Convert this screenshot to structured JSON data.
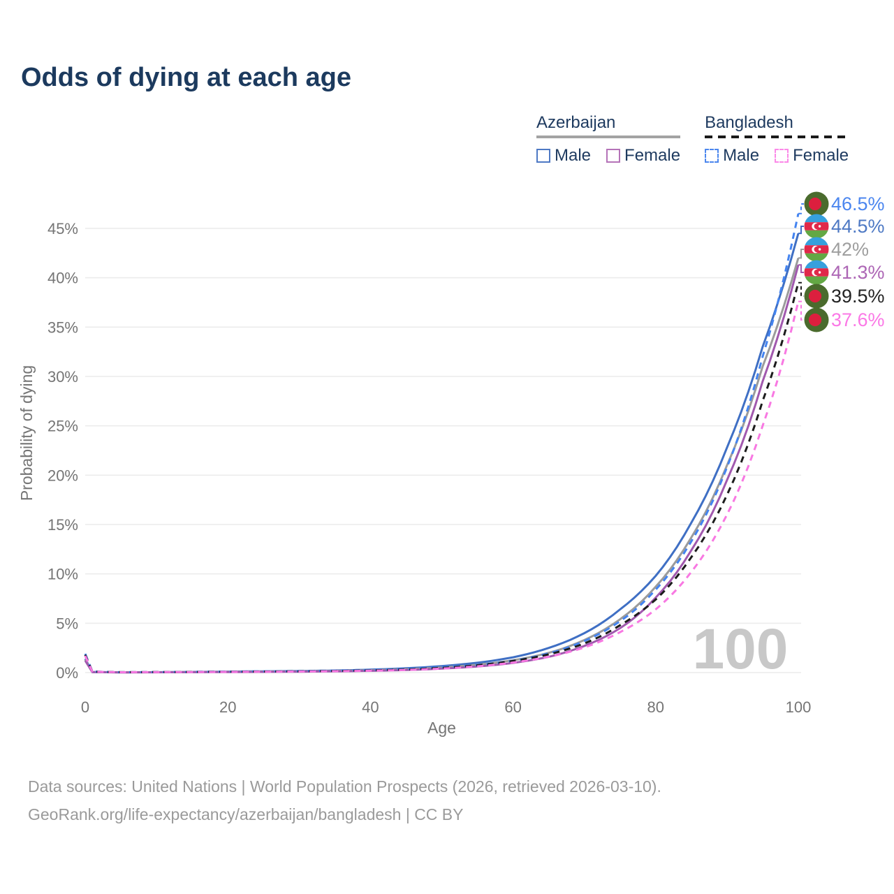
{
  "title": "Odds of dying at each age",
  "watermark": "100",
  "colors": {
    "title_text": "#1c3a5e",
    "legend_text": "#1e3a5f",
    "axis_text": "#757575",
    "grid": "#ececec",
    "footer_text": "#9a9a9a",
    "watermark": "#c8c8c8"
  },
  "legend": {
    "groups": [
      {
        "label": "Azerbaijan",
        "line_style": "solid",
        "line_color": "#a3a3a3"
      },
      {
        "label": "Bangladesh",
        "line_style": "dashed",
        "line_color": "#1a1a1a"
      }
    ],
    "items": [
      {
        "label": "Male",
        "group": "Azerbaijan",
        "swatch_color": "#4e79c4",
        "swatch_style": "solid"
      },
      {
        "label": "Female",
        "group": "Azerbaijan",
        "swatch_color": "#b573b8",
        "swatch_style": "solid"
      },
      {
        "label": "Male",
        "group": "Bangladesh",
        "swatch_color": "#4c87ee",
        "swatch_style": "dashed"
      },
      {
        "label": "Female",
        "group": "Bangladesh",
        "swatch_color": "#fb8ae8",
        "swatch_style": "dashed"
      }
    ]
  },
  "chart_data": {
    "type": "line",
    "title": "Odds of dying at each age",
    "xlabel": "Age",
    "ylabel": "Probability of dying",
    "xlim": [
      0,
      100
    ],
    "ylim_percent": [
      0,
      48
    ],
    "x_ticks": [
      0,
      20,
      40,
      60,
      80,
      100
    ],
    "y_ticks_percent": [
      0,
      5,
      10,
      15,
      20,
      25,
      30,
      35,
      40,
      45
    ],
    "grid": "horizontal-only",
    "legend_position": "top-right",
    "big_age_counter": "100",
    "ages": [
      0,
      1,
      5,
      10,
      15,
      20,
      25,
      30,
      35,
      40,
      45,
      50,
      55,
      60,
      65,
      70,
      75,
      80,
      85,
      90,
      95,
      100
    ],
    "series": [
      {
        "name": "Azerbaijan Male",
        "country": "Azerbaijan",
        "sex": "Male",
        "style": "solid",
        "color": "#3f6fc4",
        "label_color": "#4e79c4",
        "end_label": "44.5%",
        "flag": "azerbaijan",
        "values_percent": [
          1.4,
          0.06,
          0.03,
          0.04,
          0.07,
          0.1,
          0.13,
          0.16,
          0.21,
          0.3,
          0.44,
          0.66,
          1.0,
          1.55,
          2.5,
          4.0,
          6.4,
          9.8,
          15.2,
          22.8,
          33.0,
          44.5
        ]
      },
      {
        "name": "Azerbaijan Both sexes",
        "country": "Azerbaijan",
        "sex": "Both",
        "style": "solid",
        "color": "#9b9b9b",
        "label_color": "#9e9e9e",
        "end_label": "42%",
        "flag": "azerbaijan",
        "values_percent": [
          1.3,
          0.055,
          0.026,
          0.035,
          0.055,
          0.078,
          0.1,
          0.126,
          0.17,
          0.235,
          0.345,
          0.52,
          0.8,
          1.25,
          2.0,
          3.3,
          5.4,
          8.7,
          13.7,
          21.0,
          31.0,
          42.0
        ]
      },
      {
        "name": "Azerbaijan Female",
        "country": "Azerbaijan",
        "sex": "Female",
        "style": "solid",
        "color": "#a159ae",
        "label_color": "#ad66b5",
        "end_label": "41.3%",
        "flag": "azerbaijan",
        "values_percent": [
          1.2,
          0.05,
          0.022,
          0.03,
          0.042,
          0.055,
          0.072,
          0.092,
          0.125,
          0.18,
          0.26,
          0.4,
          0.62,
          0.98,
          1.6,
          2.7,
          4.5,
          7.6,
          12.4,
          19.5,
          29.5,
          41.3
        ]
      },
      {
        "name": "Bangladesh Male",
        "country": "Bangladesh",
        "sex": "Male",
        "style": "dashed",
        "color": "#4484f0",
        "label_color": "#4b86ef",
        "end_label": "46.5%",
        "flag": "bangladesh",
        "values_percent": [
          1.9,
          0.11,
          0.042,
          0.052,
          0.08,
          0.1,
          0.122,
          0.15,
          0.19,
          0.26,
          0.38,
          0.56,
          0.78,
          1.2,
          1.95,
          3.2,
          5.2,
          8.4,
          13.3,
          20.8,
          32.0,
          46.5
        ]
      },
      {
        "name": "Bangladesh Both sexes",
        "country": "Bangladesh",
        "sex": "Both",
        "style": "dashed",
        "color": "#1c1c1c",
        "label_color": "#232323",
        "end_label": "39.5%",
        "flag": "bangladesh",
        "values_percent": [
          1.8,
          0.1,
          0.04,
          0.048,
          0.068,
          0.085,
          0.103,
          0.128,
          0.163,
          0.22,
          0.32,
          0.48,
          0.74,
          1.18,
          1.85,
          2.95,
          4.8,
          7.4,
          11.7,
          18.0,
          27.5,
          39.5
        ]
      },
      {
        "name": "Bangladesh Female",
        "country": "Bangladesh",
        "sex": "Female",
        "style": "dashed",
        "color": "#f878e2",
        "label_color": "#fb78e6",
        "end_label": "37.6%",
        "flag": "bangladesh",
        "values_percent": [
          1.7,
          0.095,
          0.037,
          0.045,
          0.058,
          0.07,
          0.088,
          0.108,
          0.14,
          0.19,
          0.27,
          0.41,
          0.64,
          1.02,
          1.6,
          2.55,
          4.1,
          6.4,
          10.2,
          16.0,
          25.0,
          37.6
        ]
      }
    ],
    "end_labels_top_to_bottom": [
      "46.5%",
      "44.5%",
      "42%",
      "41.3%",
      "39.5%",
      "37.6%"
    ],
    "flag_colors": {
      "azerbaijan_blue": "#36a0dd",
      "azerbaijan_red": "#e0294a",
      "azerbaijan_green": "#63a844",
      "bangladesh_green": "#4a6b2d",
      "bangladesh_red": "#dc1f3e"
    }
  },
  "footer": {
    "line1": "Data sources: United Nations | World Population Prospects (2026, retrieved 2026-03-10).",
    "line2": "GeoRank.org/life-expectancy/azerbaijan/bangladesh | CC BY"
  }
}
